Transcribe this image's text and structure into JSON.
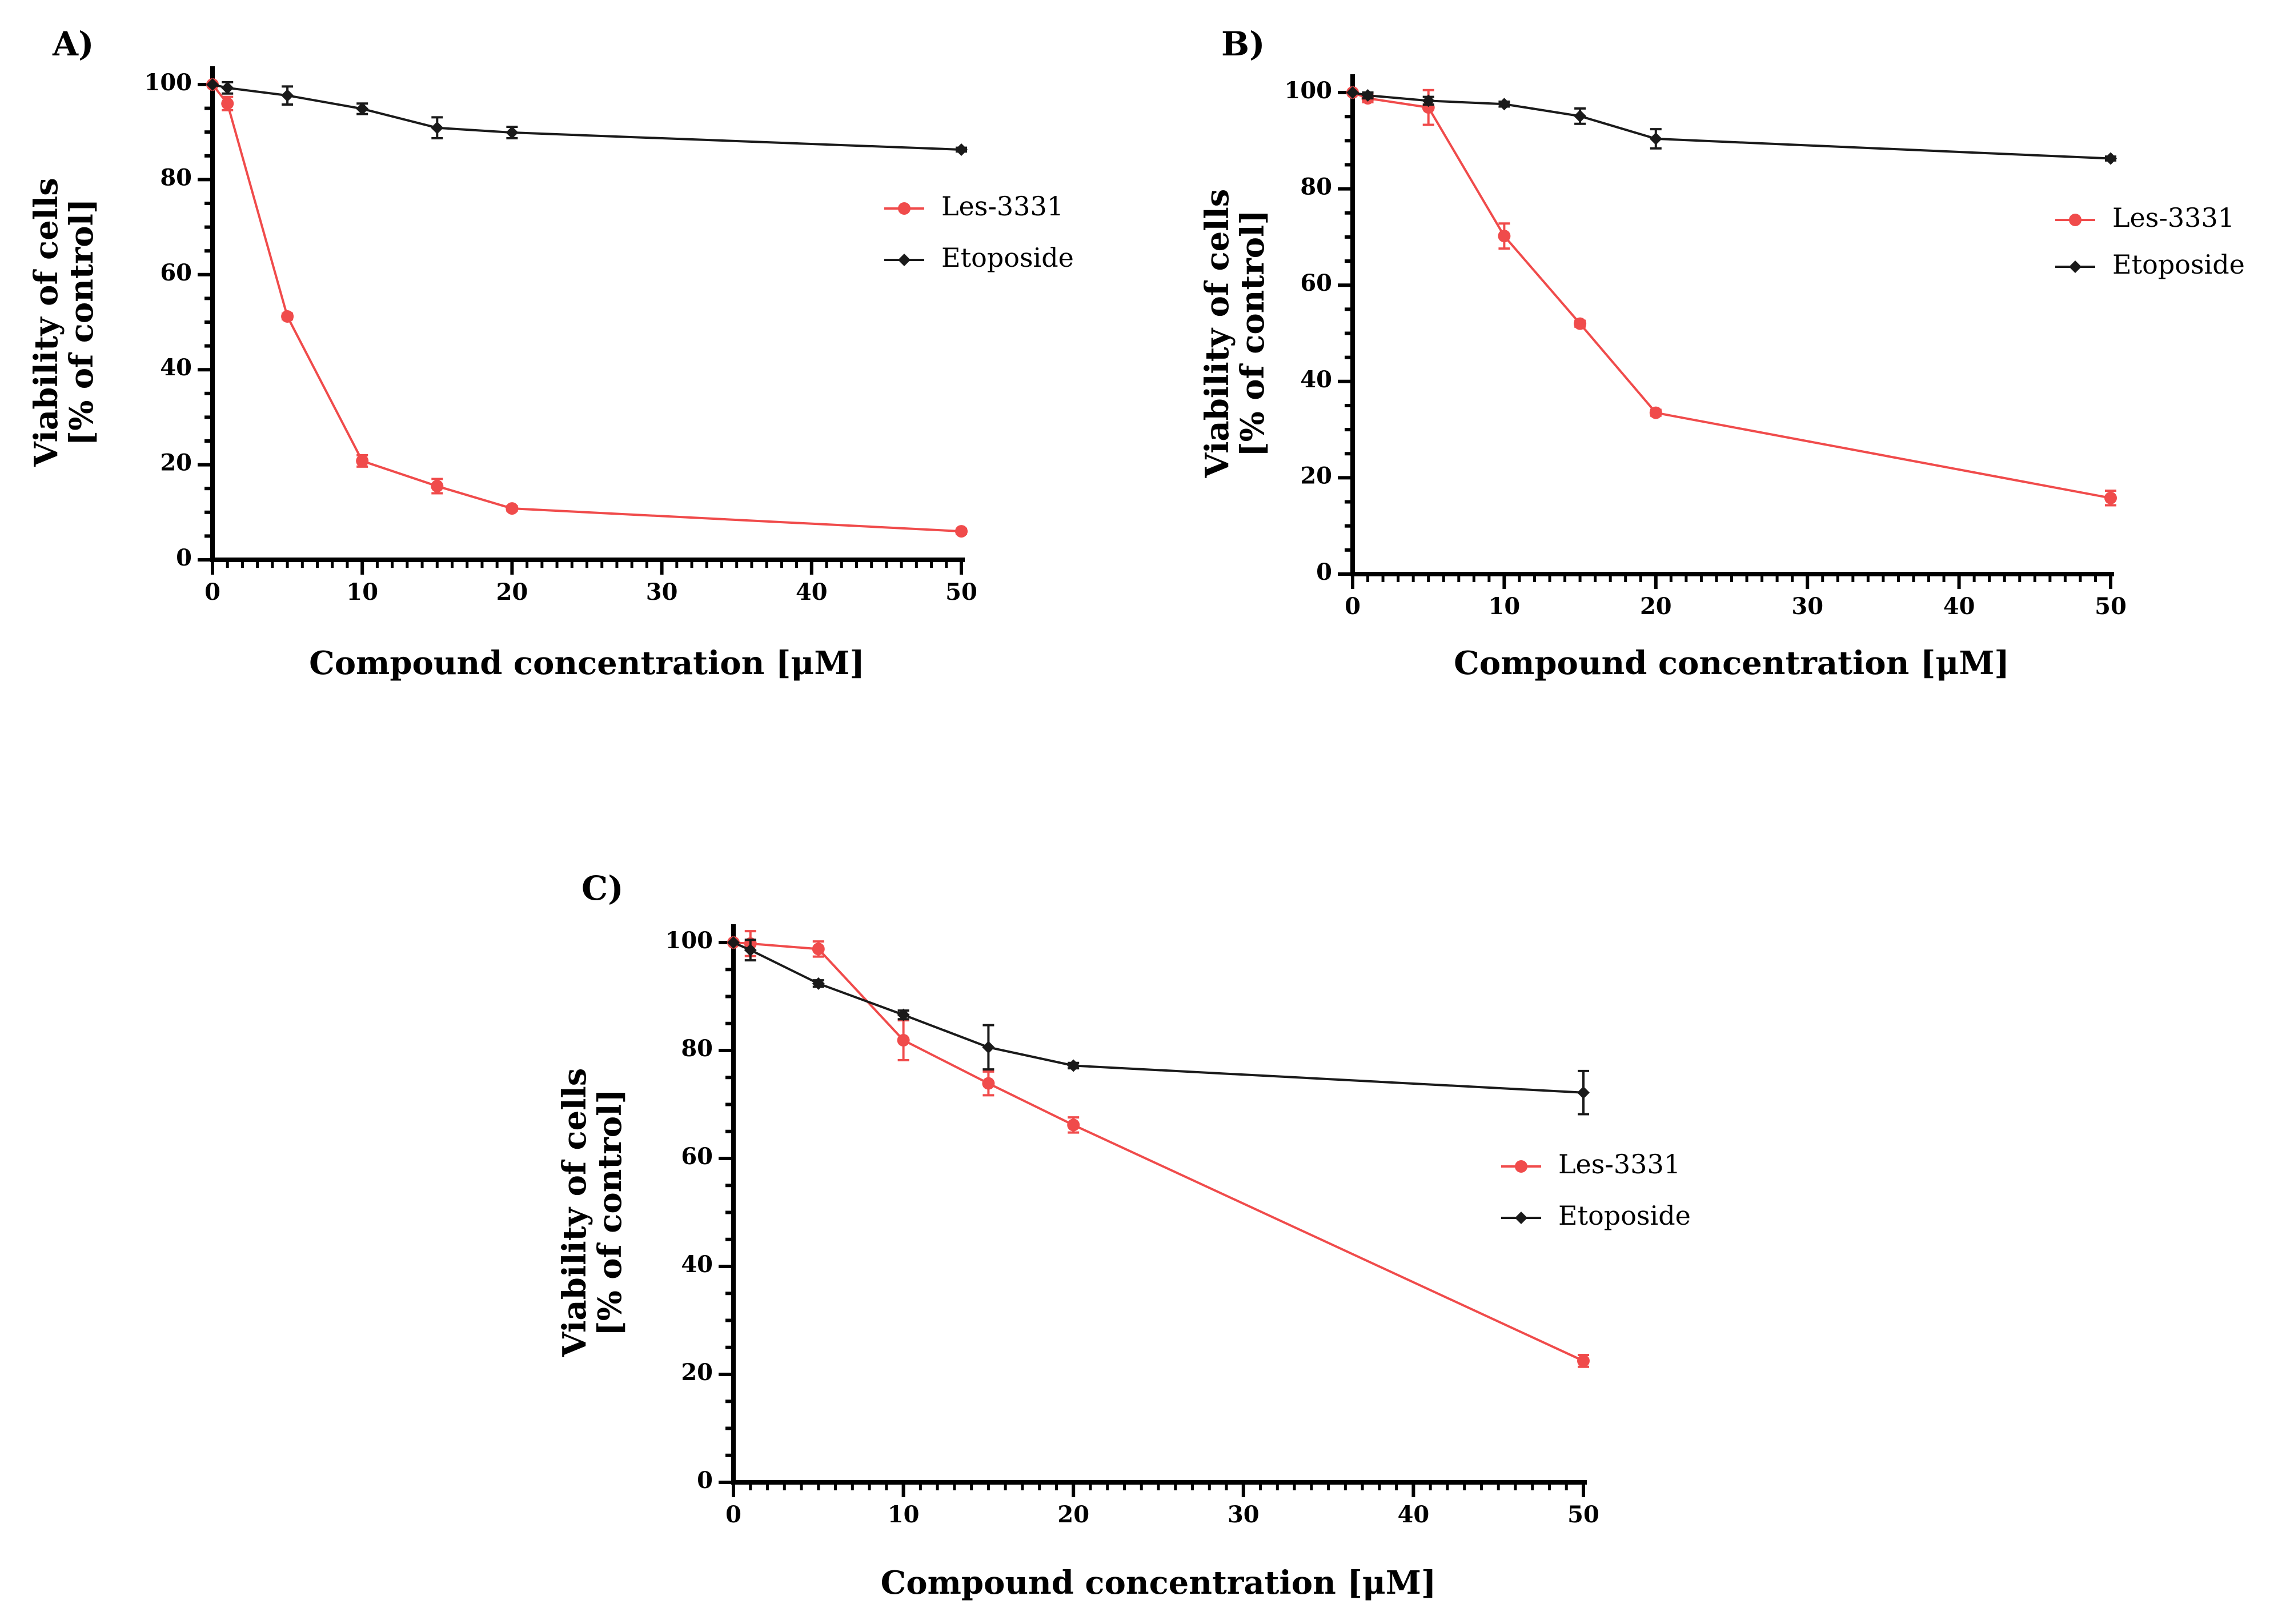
{
  "figure": {
    "series_colors": {
      "Les-3331": "#f04b4b",
      "Etoposide": "#1a1a1a"
    },
    "axis_color": "#000000"
  },
  "chart_data": [
    {
      "panel": "A)",
      "type": "line",
      "xlabel": "Compound concentration [μM]",
      "ylabel_line1": "Viability of cells",
      "ylabel_line2": "[% of control]",
      "xlim": [
        0,
        50
      ],
      "ylim": [
        0,
        100
      ],
      "xticks": [
        0,
        10,
        20,
        30,
        40,
        50
      ],
      "yticks": [
        0,
        20,
        40,
        60,
        80,
        100
      ],
      "legend_position": "right",
      "series": [
        {
          "name": "Les-3331",
          "marker": "circle",
          "x": [
            0,
            1,
            5,
            10,
            15,
            20,
            50
          ],
          "y": [
            100,
            96,
            51.2,
            20.8,
            15.5,
            10.8,
            6
          ],
          "err": [
            0,
            1.4,
            0.6,
            1.2,
            1.5,
            0.5,
            0.5
          ]
        },
        {
          "name": "Etoposide",
          "marker": "diamond",
          "x": [
            0,
            1,
            5,
            10,
            15,
            20,
            50
          ],
          "y": [
            100,
            99.3,
            97.7,
            94.9,
            90.9,
            89.9,
            86.3
          ],
          "err": [
            0,
            1.2,
            1.9,
            1.1,
            2.2,
            1.2,
            0.4
          ]
        }
      ]
    },
    {
      "panel": "B)",
      "type": "line",
      "xlabel": "Compound concentration [μM]",
      "ylabel_line1": "Viability of cells",
      "ylabel_line2": "[% of control]",
      "xlim": [
        0,
        50
      ],
      "ylim": [
        0,
        100
      ],
      "xticks": [
        0,
        10,
        20,
        30,
        40,
        50
      ],
      "yticks": [
        0,
        20,
        40,
        60,
        80,
        100
      ],
      "legend_position": "right",
      "series": [
        {
          "name": "Les-3331",
          "marker": "circle",
          "x": [
            0,
            1,
            5,
            10,
            15,
            20,
            50
          ],
          "y": [
            100,
            98.8,
            96.9,
            70.2,
            52,
            33.5,
            15.8
          ],
          "err": [
            0,
            0.8,
            3.6,
            2.6,
            0.6,
            0.6,
            1.5
          ]
        },
        {
          "name": "Etoposide",
          "marker": "diamond",
          "x": [
            0,
            1,
            5,
            10,
            15,
            20,
            50
          ],
          "y": [
            100,
            99.4,
            98.3,
            97.6,
            95.1,
            90.4,
            86.3
          ],
          "err": [
            0,
            0.6,
            0.8,
            0.5,
            1.6,
            2,
            0.4
          ]
        }
      ]
    },
    {
      "panel": "C)",
      "type": "line",
      "xlabel": "Compound concentration [μM]",
      "ylabel_line1": "Viability of cells",
      "ylabel_line2": "[% of control]",
      "xlim": [
        0,
        50
      ],
      "ylim": [
        0,
        100
      ],
      "xticks": [
        0,
        10,
        20,
        30,
        40,
        50
      ],
      "yticks": [
        0,
        20,
        40,
        60,
        80,
        100
      ],
      "legend_position": "right",
      "series": [
        {
          "name": "Les-3331",
          "marker": "circle",
          "x": [
            0,
            1,
            5,
            10,
            15,
            20,
            50
          ],
          "y": [
            100,
            99.8,
            98.8,
            81.9,
            73.9,
            66.2,
            22.5
          ],
          "err": [
            0,
            2.3,
            1.4,
            3.7,
            2.2,
            1.4,
            1.1
          ]
        },
        {
          "name": "Etoposide",
          "marker": "diamond",
          "x": [
            0,
            1,
            5,
            10,
            15,
            20,
            50
          ],
          "y": [
            100,
            98.6,
            92.4,
            86.6,
            80.6,
            77.2,
            72.2
          ],
          "err": [
            0,
            1.9,
            0.6,
            0.8,
            4.1,
            0.5,
            4
          ]
        }
      ]
    }
  ]
}
